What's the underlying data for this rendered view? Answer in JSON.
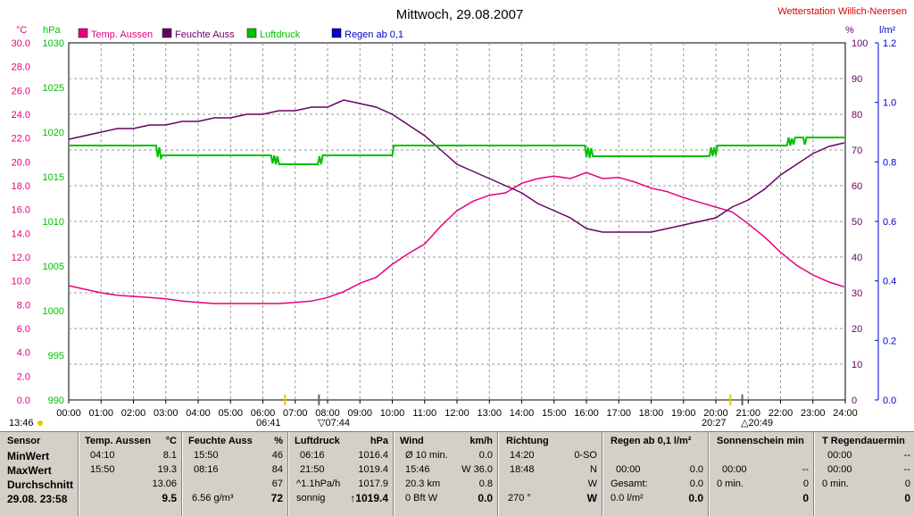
{
  "title": "Mittwoch, 29.08.2007",
  "station": "Wetterstation Willich-Neersen",
  "chart_data": {
    "type": "line",
    "x_unit": "hours",
    "x_ticks": [
      "00:00",
      "01:00",
      "02:00",
      "03:00",
      "04:00",
      "05:00",
      "06:00",
      "07:00",
      "08:00",
      "09:00",
      "10:00",
      "11:00",
      "12:00",
      "13:00",
      "14:00",
      "15:00",
      "16:00",
      "17:00",
      "18:00",
      "19:00",
      "20:00",
      "21:00",
      "22:00",
      "23:00",
      "24:00"
    ],
    "xlim": [
      0,
      24
    ],
    "axes": {
      "temp": {
        "unit": "°C",
        "range": [
          0,
          30
        ],
        "ticks": [
          "0.0",
          "2.0",
          "4.0",
          "6.0",
          "8.0",
          "10.0",
          "12.0",
          "14.0",
          "16.0",
          "18.0",
          "20.0",
          "22.0",
          "24.0",
          "26.0",
          "28.0",
          "30.0"
        ],
        "color": "#e6007e"
      },
      "pressure": {
        "unit": "hPa",
        "range": [
          990,
          1030
        ],
        "ticks": [
          "990",
          "995",
          "1000",
          "1005",
          "1010",
          "1015",
          "1020",
          "1025",
          "1030"
        ],
        "color": "#00c000"
      },
      "humidity": {
        "unit": "%",
        "range": [
          0,
          100
        ],
        "ticks": [
          "0",
          "10",
          "20",
          "30",
          "40",
          "50",
          "60",
          "70",
          "80",
          "90",
          "100"
        ],
        "color": "#660066"
      },
      "rain": {
        "unit": "l/m²",
        "range": [
          0,
          1.2
        ],
        "ticks": [
          "0.0",
          "0.2",
          "0.4",
          "0.6",
          "0.8",
          "1.0",
          "1.2"
        ],
        "color": "#0000cc"
      }
    },
    "series": [
      {
        "name": "Temp. Aussen",
        "axis": "temp",
        "color": "#e6007e",
        "x": [
          0,
          0.5,
          1,
          1.5,
          2,
          2.5,
          3,
          3.5,
          4,
          4.5,
          5,
          5.5,
          6,
          6.5,
          7,
          7.5,
          8,
          8.5,
          9,
          9.5,
          10,
          10.5,
          11,
          11.5,
          12,
          12.5,
          13,
          13.5,
          14,
          14.5,
          15,
          15.5,
          16,
          16.5,
          17,
          17.5,
          18,
          18.5,
          19,
          19.5,
          20,
          20.5,
          21,
          21.5,
          22,
          22.5,
          23,
          23.5,
          23.97
        ],
        "y": [
          9.6,
          9.3,
          9.0,
          8.8,
          8.7,
          8.6,
          8.5,
          8.3,
          8.2,
          8.1,
          8.1,
          8.1,
          8.1,
          8.1,
          8.2,
          8.3,
          8.6,
          9.1,
          9.8,
          10.3,
          11.4,
          12.3,
          13.1,
          14.6,
          15.9,
          16.7,
          17.2,
          17.4,
          18.2,
          18.6,
          18.8,
          18.6,
          19.1,
          18.6,
          18.7,
          18.3,
          17.8,
          17.5,
          17.0,
          16.6,
          16.2,
          15.8,
          14.8,
          13.7,
          12.4,
          11.3,
          10.5,
          9.9,
          9.5
        ]
      },
      {
        "name": "Feuchte Auss",
        "axis": "humidity",
        "color": "#660066",
        "x": [
          0,
          0.5,
          1,
          1.5,
          2,
          2.5,
          3,
          3.5,
          4,
          4.5,
          5,
          5.5,
          6,
          6.5,
          7,
          7.5,
          8,
          8.5,
          9,
          9.5,
          10,
          10.5,
          11,
          11.5,
          12,
          12.5,
          13,
          13.5,
          14,
          14.5,
          15,
          15.5,
          16,
          16.5,
          17,
          17.5,
          18,
          18.5,
          19,
          19.5,
          20,
          20.5,
          21,
          21.5,
          22,
          22.5,
          23,
          23.5,
          23.97
        ],
        "y": [
          73,
          74,
          75,
          76,
          76,
          77,
          77,
          78,
          78,
          79,
          79,
          80,
          80,
          81,
          81,
          82,
          82,
          84,
          83,
          82,
          80,
          77,
          74,
          70,
          66,
          64,
          62,
          60,
          58,
          55,
          53,
          51,
          48,
          47,
          47,
          47,
          47,
          48,
          49,
          50,
          51,
          54,
          56,
          59,
          63,
          66,
          69,
          71,
          72
        ]
      },
      {
        "name": "Luftdruck",
        "axis": "pressure",
        "color": "#00c000",
        "x": [
          0,
          2.7,
          2.75,
          2.8,
          2.85,
          2.9,
          6.25,
          6.3,
          6.35,
          6.4,
          6.45,
          6.5,
          6.6,
          7.7,
          7.75,
          7.8,
          7.85,
          7.9,
          10.0,
          10.05,
          15.95,
          16.0,
          16.05,
          16.1,
          16.15,
          16.2,
          16.3,
          19.8,
          19.85,
          19.9,
          19.95,
          20.0,
          20.05,
          20.1,
          22.2,
          22.25,
          22.3,
          22.35,
          22.4,
          22.45,
          22.5,
          22.7,
          22.75,
          22.8,
          22.85,
          24
        ],
        "y": [
          1018.5,
          1018.5,
          1017.2,
          1018.3,
          1017.1,
          1017.4,
          1017.4,
          1016.5,
          1017.4,
          1016.4,
          1017.3,
          1016.4,
          1016.4,
          1016.4,
          1017.3,
          1016.4,
          1017.4,
          1017.4,
          1017.4,
          1018.5,
          1018.5,
          1017.2,
          1018.3,
          1017.1,
          1018.2,
          1017.3,
          1017.3,
          1017.3,
          1018.3,
          1017.3,
          1018.3,
          1017.4,
          1018.5,
          1018.5,
          1018.5,
          1019.4,
          1018.5,
          1019.3,
          1018.6,
          1019.4,
          1019.4,
          1019.4,
          1018.6,
          1019.4,
          1019.4,
          1019.4
        ]
      },
      {
        "name": "Regen ab 0,1",
        "axis": "rain",
        "color": "#0000cc",
        "x": [],
        "y": []
      }
    ]
  },
  "axis_labels": {
    "temp": "°C",
    "pressure": "hPa",
    "humidity": "%",
    "rain": "l/m²"
  },
  "sun": {
    "left_time": "13:46",
    "rise": "06:41",
    "rise2": "07:44",
    "set": "20:27",
    "set2": "20:49"
  },
  "table": {
    "sensor": {
      "header": "Sensor",
      "rows": [
        "MinWert",
        "MaxWert",
        "Durchschnitt",
        "29.08. 23:58"
      ]
    },
    "temp": {
      "header": "Temp. Aussen",
      "unit": "°C",
      "min_time": "04:10",
      "min": "8.1",
      "max_time": "15:50",
      "max": "19.3",
      "avg": "13.06",
      "current": "9.5"
    },
    "hum": {
      "header": "Feuchte Auss",
      "unit": "%",
      "min_time": "15:50",
      "min": "46",
      "max_time": "08:16",
      "max": "84",
      "avg": "67",
      "abs": "6.56 g/m³",
      "current": "72"
    },
    "press": {
      "header": "Luftdruck",
      "unit": "hPa",
      "min_time": "06:16",
      "min": "1016.4",
      "max_time": "21:50",
      "max": "1019.4",
      "trend": "^1.1hPa/h",
      "avg": "1017.9",
      "forecast": "sonnig",
      "current": "1019.4"
    },
    "wind": {
      "header": "Wind",
      "unit": "km/h",
      "r1_label": "Ø 10 min.",
      "r1_val": "0.0",
      "r2_time": "15:46",
      "r2_val": "W 36.0",
      "r3_label": "20.3 km",
      "r3_val": "0.8",
      "r4_label": "0 Bft W",
      "r4_val": "0.0"
    },
    "dir": {
      "header": "Richtung",
      "r1_time": "14:20",
      "r1_val": "0-SO",
      "r2_time": "18:48",
      "r2_val": "N",
      "r3_val": "W",
      "r4_label": "270 °",
      "r4_val": "W"
    },
    "rain": {
      "header": "Regen ab 0,1  l/m²",
      "r2_time": "00:00",
      "r2_val": "0.0",
      "r3_label": "Gesamt:",
      "r3_val": "0.0",
      "r4_label": "0.0 l/m²",
      "r4_val": "0.0"
    },
    "sunshine": {
      "header": "Sonnenschein min",
      "r2_time": "00:00",
      "r2_val": "--",
      "r3_label": "0 min.",
      "r3_val": "0",
      "r4_val": "0"
    },
    "rainduration": {
      "header": "T Regendauermin",
      "r1_time": "00:00",
      "r1_val": "--",
      "r2_time": "00:00",
      "r2_val": "--",
      "r3_label": "0 min.",
      "r3_val": "0",
      "r4_val": "0"
    }
  }
}
